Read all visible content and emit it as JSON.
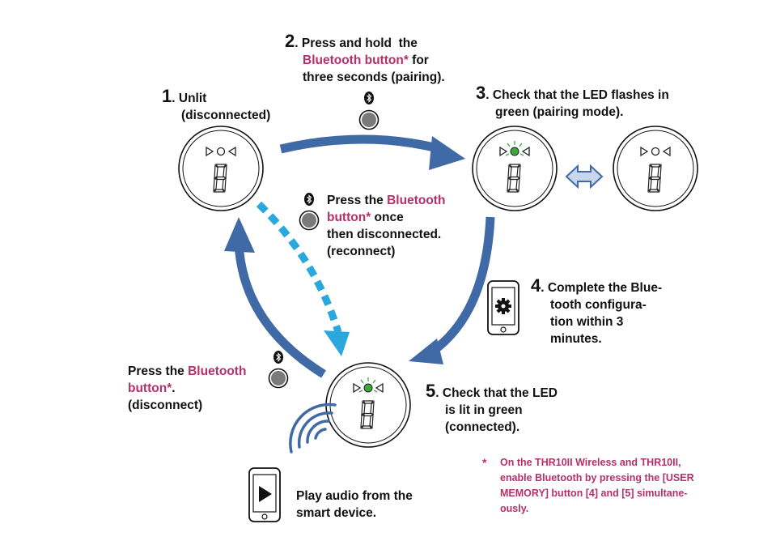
{
  "colors": {
    "arrow_blue": "#3f6aa6",
    "arrow_cyan": "#2aa8dd",
    "highlight_pink": "#b5306b",
    "led_green": "#3ea83e",
    "button_gray": "#7a7a7a"
  },
  "icons": [
    "bluetooth-icon",
    "settings-gear-icon",
    "play-icon",
    "wireless-signal-icon",
    "smartphone-icon",
    "seven-segment-display-icon"
  ],
  "steps": {
    "s1": {
      "num": "1",
      "line1": "Unlit",
      "line2": "(disconnected)"
    },
    "s2": {
      "num": "2",
      "line1_pre": "Press and hold",
      "line1_post": "the",
      "line2_hl": "Bluetooth button*",
      "line2_post": "for",
      "line3": "three seconds (pairing)."
    },
    "s3": {
      "num": "3",
      "line1": "Check that the LED flashes in",
      "line2": "green (pairing mode)."
    },
    "s4": {
      "num": "4",
      "line1": "Complete the Blue-",
      "line2": "tooth configura-",
      "line3": "tion within 3",
      "line4": "minutes."
    },
    "s5": {
      "num": "5",
      "line1": "Check that the LED",
      "line2": "is lit  in green",
      "line3": "(connected)."
    }
  },
  "reconnect": {
    "pre": "Press the",
    "hl": "Bluetooth",
    "line2_hl": "button*",
    "line2_post": "once",
    "line3": "then disconnected.",
    "line4": "(reconnect)"
  },
  "disconnect": {
    "pre": "Press the",
    "hl": "Bluetooth",
    "line2_hl": "button*",
    "line2_post": ".",
    "line3": "(disconnect)"
  },
  "play": {
    "line1": "Play audio from the",
    "line2": "smart device."
  },
  "footnote": {
    "star": "*",
    "line1": "On the THR10II Wireless and THR10II,",
    "line2": "enable Bluetooth by pressing the [USER",
    "line3": "MEMORY] button [4] and [5] simultane-",
    "line4": "ously."
  }
}
